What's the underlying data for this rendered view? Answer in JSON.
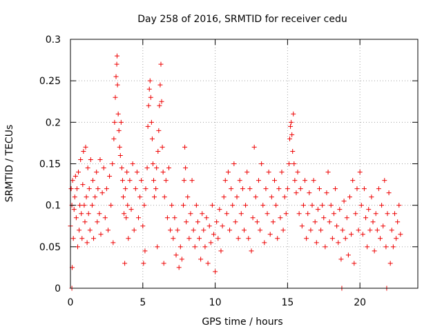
{
  "chart_data": {
    "type": "scatter",
    "title": "Day 258 of 2016, SRMTID for receiver cedu",
    "xlabel": "GPS time / hours",
    "ylabel": "SRMTID / TECUs",
    "xlim": [
      0,
      24
    ],
    "ylim": [
      0,
      0.3
    ],
    "xticks": [
      0,
      5,
      10,
      15,
      20
    ],
    "xtick_labels": [
      "0",
      "5",
      "10",
      "15",
      "20"
    ],
    "yticks": [
      0,
      0.05,
      0.1,
      0.15,
      0.2,
      0.25,
      0.3
    ],
    "ytick_labels": [
      "0",
      "0.05",
      "0.1",
      "0.15",
      "0.2",
      "0.25",
      "0.3"
    ],
    "grid": true,
    "marker": "+",
    "series": [
      {
        "name": "SRMTID",
        "color": "#ee0000",
        "points": [
          [
            0.0,
            0.075
          ],
          [
            0.05,
            0.12
          ],
          [
            0.1,
            0.1
          ],
          [
            0.12,
            0.025
          ],
          [
            0.15,
            0.13
          ],
          [
            0.2,
            0.06
          ],
          [
            0.25,
            0.095
          ],
          [
            0.3,
            0.11
          ],
          [
            0.35,
            0.135
          ],
          [
            0.4,
            0.085
          ],
          [
            0.45,
            0.12
          ],
          [
            0.5,
            0.05
          ],
          [
            0.55,
            0.14
          ],
          [
            0.6,
            0.07
          ],
          [
            0.65,
            0.1
          ],
          [
            0.7,
            0.155
          ],
          [
            0.75,
            0.09
          ],
          [
            0.8,
            0.06
          ],
          [
            0.85,
            0.125
          ],
          [
            0.9,
            0.165
          ],
          [
            0.95,
            0.1
          ],
          [
            1.0,
            0.08
          ],
          [
            1.05,
            0.17
          ],
          [
            1.1,
            0.11
          ],
          [
            1.15,
            0.055
          ],
          [
            1.2,
            0.145
          ],
          [
            1.25,
            0.09
          ],
          [
            1.3,
            0.12
          ],
          [
            1.35,
            0.07
          ],
          [
            1.4,
            0.155
          ],
          [
            1.5,
            0.1
          ],
          [
            1.55,
            0.13
          ],
          [
            1.6,
            0.06
          ],
          [
            1.7,
            0.11
          ],
          [
            1.8,
            0.14
          ],
          [
            1.85,
            0.08
          ],
          [
            1.9,
            0.12
          ],
          [
            2.0,
            0.09
          ],
          [
            2.05,
            0.155
          ],
          [
            2.1,
            0.065
          ],
          [
            2.2,
            0.115
          ],
          [
            2.3,
            0.145
          ],
          [
            2.4,
            0.085
          ],
          [
            2.5,
            0.12
          ],
          [
            2.6,
            0.07
          ],
          [
            2.7,
            0.135
          ],
          [
            2.8,
            0.1
          ],
          [
            2.9,
            0.15
          ],
          [
            2.95,
            0.055
          ],
          [
            3.0,
            0.18
          ],
          [
            3.05,
            0.2
          ],
          [
            3.1,
            0.23
          ],
          [
            3.15,
            0.255
          ],
          [
            3.2,
            0.27
          ],
          [
            3.22,
            0.28
          ],
          [
            3.25,
            0.245
          ],
          [
            3.3,
            0.21
          ],
          [
            3.35,
            0.19
          ],
          [
            3.4,
            0.17
          ],
          [
            3.45,
            0.16
          ],
          [
            3.5,
            0.2
          ],
          [
            3.55,
            0.145
          ],
          [
            3.6,
            0.13
          ],
          [
            3.65,
            0.11
          ],
          [
            3.7,
            0.09
          ],
          [
            3.75,
            0.03
          ],
          [
            3.8,
            0.12
          ],
          [
            3.85,
            0.085
          ],
          [
            3.9,
            0.14
          ],
          [
            3.95,
            0.1
          ],
          [
            4.0,
            0.06
          ],
          [
            4.1,
            0.13
          ],
          [
            4.2,
            0.095
          ],
          [
            4.3,
            0.15
          ],
          [
            4.4,
            0.07
          ],
          [
            4.5,
            0.12
          ],
          [
            4.6,
            0.14
          ],
          [
            4.7,
            0.085
          ],
          [
            4.8,
            0.11
          ],
          [
            4.9,
            0.13
          ],
          [
            5.0,
            0.075
          ],
          [
            5.05,
            0.03
          ],
          [
            5.1,
            0.1
          ],
          [
            5.15,
            0.045
          ],
          [
            5.2,
            0.12
          ],
          [
            5.3,
            0.145
          ],
          [
            5.35,
            0.195
          ],
          [
            5.4,
            0.22
          ],
          [
            5.45,
            0.24
          ],
          [
            5.5,
            0.25
          ],
          [
            5.55,
            0.23
          ],
          [
            5.6,
            0.2
          ],
          [
            5.65,
            0.18
          ],
          [
            5.7,
            0.15
          ],
          [
            5.75,
            0.13
          ],
          [
            5.8,
            0.11
          ],
          [
            5.9,
            0.12
          ],
          [
            5.95,
            0.145
          ],
          [
            6.0,
            0.05
          ],
          [
            6.05,
            0.165
          ],
          [
            6.1,
            0.19
          ],
          [
            6.15,
            0.22
          ],
          [
            6.2,
            0.245
          ],
          [
            6.25,
            0.27
          ],
          [
            6.3,
            0.225
          ],
          [
            6.35,
            0.17
          ],
          [
            6.4,
            0.14
          ],
          [
            6.45,
            0.03
          ],
          [
            6.5,
            0.11
          ],
          [
            6.6,
            0.13
          ],
          [
            6.7,
            0.085
          ],
          [
            6.8,
            0.145
          ],
          [
            6.9,
            0.07
          ],
          [
            7.0,
            0.1
          ],
          [
            7.1,
            0.06
          ],
          [
            7.2,
            0.085
          ],
          [
            7.3,
            0.04
          ],
          [
            7.4,
            0.07
          ],
          [
            7.5,
            0.025
          ],
          [
            7.6,
            0.05
          ],
          [
            7.7,
            0.035
          ],
          [
            7.8,
            0.1
          ],
          [
            7.85,
            0.13
          ],
          [
            7.9,
            0.17
          ],
          [
            7.95,
            0.145
          ],
          [
            8.0,
            0.08
          ],
          [
            8.1,
            0.11
          ],
          [
            8.2,
            0.06
          ],
          [
            8.3,
            0.09
          ],
          [
            8.4,
            0.13
          ],
          [
            8.5,
            0.07
          ],
          [
            8.6,
            0.05
          ],
          [
            8.7,
            0.1
          ],
          [
            8.8,
            0.08
          ],
          [
            8.9,
            0.06
          ],
          [
            9.0,
            0.035
          ],
          [
            9.1,
            0.09
          ],
          [
            9.2,
            0.07
          ],
          [
            9.3,
            0.05
          ],
          [
            9.4,
            0.085
          ],
          [
            9.5,
            0.03
          ],
          [
            9.6,
            0.075
          ],
          [
            9.7,
            0.055
          ],
          [
            9.8,
            0.1
          ],
          [
            9.9,
            0.065
          ],
          [
            10.0,
            0.02
          ],
          [
            10.1,
            0.08
          ],
          [
            10.2,
            0.06
          ],
          [
            10.3,
            0.095
          ],
          [
            10.4,
            0.045
          ],
          [
            10.5,
            0.075
          ],
          [
            10.6,
            0.11
          ],
          [
            10.7,
            0.13
          ],
          [
            10.8,
            0.09
          ],
          [
            10.9,
            0.14
          ],
          [
            11.0,
            0.07
          ],
          [
            11.1,
            0.12
          ],
          [
            11.2,
            0.1
          ],
          [
            11.3,
            0.15
          ],
          [
            11.4,
            0.08
          ],
          [
            11.5,
            0.11
          ],
          [
            11.6,
            0.06
          ],
          [
            11.7,
            0.13
          ],
          [
            11.8,
            0.09
          ],
          [
            11.9,
            0.12
          ],
          [
            12.0,
            0.07
          ],
          [
            12.1,
            0.1
          ],
          [
            12.2,
            0.14
          ],
          [
            12.3,
            0.06
          ],
          [
            12.4,
            0.12
          ],
          [
            12.5,
            0.045
          ],
          [
            12.6,
            0.085
          ],
          [
            12.7,
            0.17
          ],
          [
            12.8,
            0.11
          ],
          [
            12.9,
            0.08
          ],
          [
            13.0,
            0.13
          ],
          [
            13.1,
            0.07
          ],
          [
            13.2,
            0.15
          ],
          [
            13.3,
            0.1
          ],
          [
            13.4,
            0.055
          ],
          [
            13.5,
            0.12
          ],
          [
            13.6,
            0.09
          ],
          [
            13.7,
            0.14
          ],
          [
            13.8,
            0.065
          ],
          [
            13.9,
            0.11
          ],
          [
            14.0,
            0.08
          ],
          [
            14.1,
            0.13
          ],
          [
            14.2,
            0.1
          ],
          [
            14.3,
            0.06
          ],
          [
            14.4,
            0.12
          ],
          [
            14.5,
            0.085
          ],
          [
            14.6,
            0.14
          ],
          [
            14.7,
            0.07
          ],
          [
            14.8,
            0.11
          ],
          [
            14.9,
            0.09
          ],
          [
            15.0,
            0.12
          ],
          [
            15.1,
            0.15
          ],
          [
            15.15,
            0.18
          ],
          [
            15.2,
            0.195
          ],
          [
            15.25,
            0.2
          ],
          [
            15.3,
            0.185
          ],
          [
            15.35,
            0.165
          ],
          [
            15.4,
            0.21
          ],
          [
            15.45,
            0.15
          ],
          [
            15.5,
            0.13
          ],
          [
            15.6,
            0.115
          ],
          [
            15.7,
            0.14
          ],
          [
            15.8,
            0.09
          ],
          [
            15.9,
            0.12
          ],
          [
            16.0,
            0.075
          ],
          [
            16.1,
            0.1
          ],
          [
            16.2,
            0.13
          ],
          [
            16.3,
            0.06
          ],
          [
            16.4,
            0.09
          ],
          [
            16.5,
            0.115
          ],
          [
            16.6,
            0.07
          ],
          [
            16.7,
            0.1
          ],
          [
            16.8,
            0.13
          ],
          [
            16.9,
            0.08
          ],
          [
            17.0,
            0.055
          ],
          [
            17.1,
            0.095
          ],
          [
            17.2,
            0.12
          ],
          [
            17.3,
            0.07
          ],
          [
            17.4,
            0.1
          ],
          [
            17.5,
            0.085
          ],
          [
            17.6,
            0.05
          ],
          [
            17.7,
            0.115
          ],
          [
            17.8,
            0.14
          ],
          [
            17.9,
            0.08
          ],
          [
            18.0,
            0.1
          ],
          [
            18.1,
            0.06
          ],
          [
            18.2,
            0.09
          ],
          [
            18.3,
            0.12
          ],
          [
            18.4,
            0.075
          ],
          [
            18.5,
            0.055
          ],
          [
            18.6,
            0.095
          ],
          [
            18.7,
            0.035
          ],
          [
            18.8,
            0.07
          ],
          [
            18.9,
            0.105
          ],
          [
            19.0,
            0.06
          ],
          [
            19.1,
            0.085
          ],
          [
            19.2,
            0.04
          ],
          [
            19.3,
            0.11
          ],
          [
            19.4,
            0.065
          ],
          [
            19.5,
            0.13
          ],
          [
            19.6,
            0.03
          ],
          [
            19.7,
            0.09
          ],
          [
            19.8,
            0.12
          ],
          [
            19.9,
            0.07
          ],
          [
            20.0,
            0.14
          ],
          [
            20.1,
            0.1
          ],
          [
            20.2,
            0.065
          ],
          [
            20.3,
            0.12
          ],
          [
            20.4,
            0.085
          ],
          [
            20.5,
            0.05
          ],
          [
            20.6,
            0.095
          ],
          [
            20.7,
            0.07
          ],
          [
            20.8,
            0.11
          ],
          [
            20.9,
            0.08
          ],
          [
            21.0,
            0.045
          ],
          [
            21.1,
            0.09
          ],
          [
            21.2,
            0.07
          ],
          [
            21.3,
            0.12
          ],
          [
            21.4,
            0.06
          ],
          [
            21.5,
            0.1
          ],
          [
            21.6,
            0.075
          ],
          [
            21.7,
            0.13
          ],
          [
            21.8,
            0.05
          ],
          [
            21.9,
            0.09
          ],
          [
            22.0,
            0.115
          ],
          [
            22.1,
            0.03
          ],
          [
            22.2,
            0.07
          ],
          [
            22.3,
            0.05
          ],
          [
            22.4,
            0.09
          ],
          [
            22.5,
            0.06
          ],
          [
            22.6,
            0.08
          ],
          [
            22.7,
            0.1
          ],
          [
            22.8,
            0.065
          ],
          [
            0.1,
            0.0
          ],
          [
            18.75,
            0.0
          ],
          [
            21.85,
            0.0
          ]
        ]
      }
    ]
  }
}
